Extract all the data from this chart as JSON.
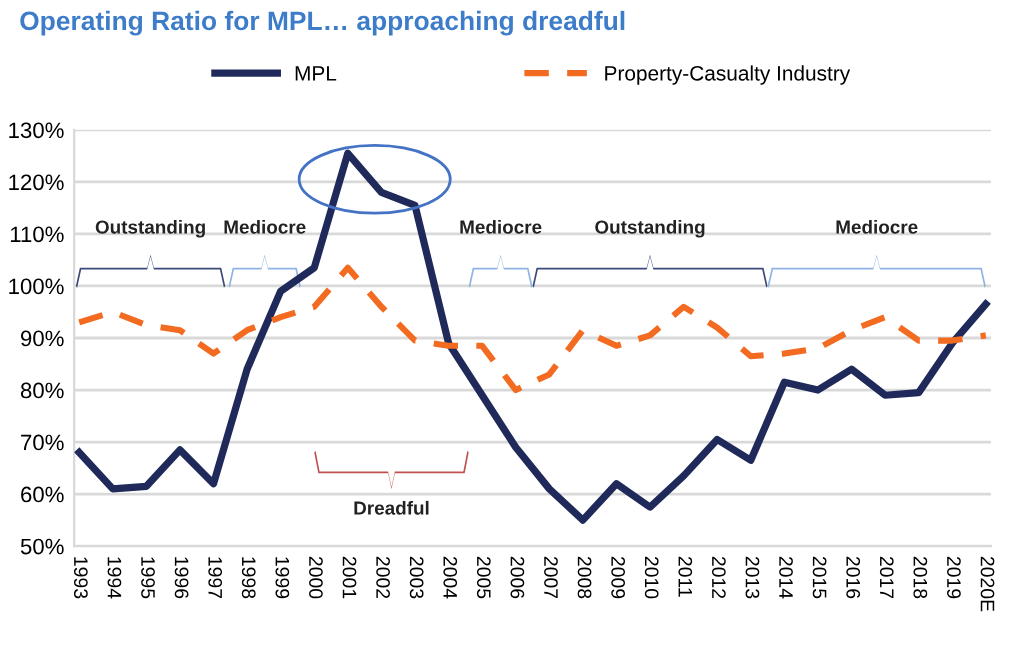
{
  "chart_data": {
    "type": "line",
    "title": "Operating Ratio for MPL… approaching dreadful",
    "categories": [
      "1993",
      "1994",
      "1995",
      "1996",
      "1997",
      "1998",
      "1999",
      "2000",
      "2001",
      "2002",
      "2003",
      "2004",
      "2005",
      "2006",
      "2007",
      "2008",
      "2009",
      "2010",
      "2011",
      "2012",
      "2013",
      "2014",
      "2015",
      "2016",
      "2017",
      "2018",
      "2019",
      "2020E"
    ],
    "series": [
      {
        "name": "MPL",
        "color": "#1f2a5a",
        "line_style": "solid",
        "values": [
          68,
          61,
          61.5,
          68.5,
          62,
          84,
          99,
          103.5,
          125.5,
          118,
          115.5,
          89,
          79,
          69,
          61,
          55,
          62,
          57.5,
          63.5,
          70.5,
          66.5,
          81.5,
          80,
          84,
          79,
          79.5,
          89,
          96.5
        ]
      },
      {
        "name": "Property-Casualty Industry",
        "color": "#f26b21",
        "line_style": "dashed",
        "values": [
          93,
          95,
          92.5,
          91.5,
          87,
          91.5,
          94,
          96,
          103.5,
          96,
          89.5,
          88.5,
          88.5,
          80,
          83,
          91.5,
          88.5,
          90.5,
          96,
          92,
          86.5,
          87,
          88,
          91.5,
          94,
          89.5,
          89.5,
          90.5
        ]
      }
    ],
    "ylim": [
      50,
      130
    ],
    "yticks": [
      {
        "value": 50,
        "label": "50%"
      },
      {
        "value": 60,
        "label": "60%"
      },
      {
        "value": 70,
        "label": "70%"
      },
      {
        "value": 80,
        "label": "80%"
      },
      {
        "value": 90,
        "label": "90%"
      },
      {
        "value": 100,
        "label": "100%"
      },
      {
        "value": 110,
        "label": "110%"
      },
      {
        "value": 120,
        "label": "120%"
      },
      {
        "value": 130,
        "label": "130%"
      }
    ],
    "grid": "y",
    "legend": "top",
    "marker": "none",
    "annotations": [
      "Outstanding",
      "Mediocre",
      "Dreadful",
      "Mediocre",
      "Outstanding",
      "Mediocre"
    ]
  }
}
